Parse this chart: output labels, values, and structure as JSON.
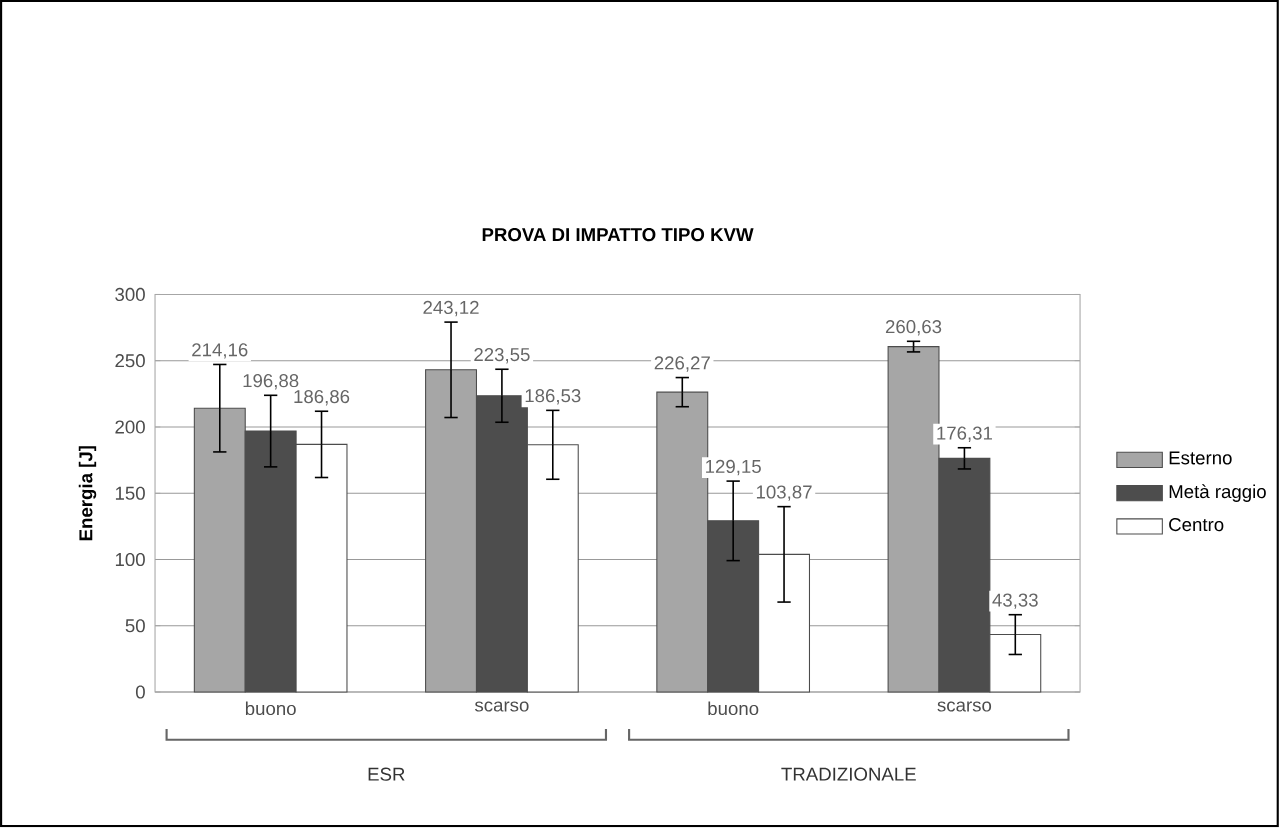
{
  "chart_data": {
    "type": "bar",
    "title": "PROVA DI IMPATTO TIPO KVW",
    "ylabel": "Energia [J]",
    "categories": [
      "buono",
      "scarso",
      "buono",
      "scarso"
    ],
    "series": [
      {
        "name": "Esterno",
        "color": "#a6a6a6",
        "values": [
          214.16,
          243.12,
          226.27,
          260.63
        ],
        "errors": [
          33,
          36,
          11,
          4
        ],
        "value_labels": [
          "214,16",
          "243,12",
          "226,27",
          "260,63"
        ]
      },
      {
        "name": "Metà raggio",
        "color": "#4d4d4d",
        "values": [
          196.88,
          223.55,
          129.15,
          176.31
        ],
        "errors": [
          27,
          20,
          30,
          8
        ],
        "value_labels": [
          "196,88",
          "223,55",
          "129,15",
          "176,31"
        ]
      },
      {
        "name": "Centro",
        "color": "#ffffff",
        "values": [
          186.86,
          186.53,
          103.87,
          43.33
        ],
        "errors": [
          25,
          26,
          36,
          15
        ],
        "value_labels": [
          "186,86",
          "186,53",
          "103,87",
          "43,33"
        ]
      }
    ],
    "ylim": [
      0,
      300
    ],
    "yticks": [
      0,
      50,
      100,
      150,
      200,
      250,
      300
    ],
    "grid": "y",
    "legend": "right",
    "annotations": [
      "ESR",
      "TRADIZIONALE"
    ]
  }
}
